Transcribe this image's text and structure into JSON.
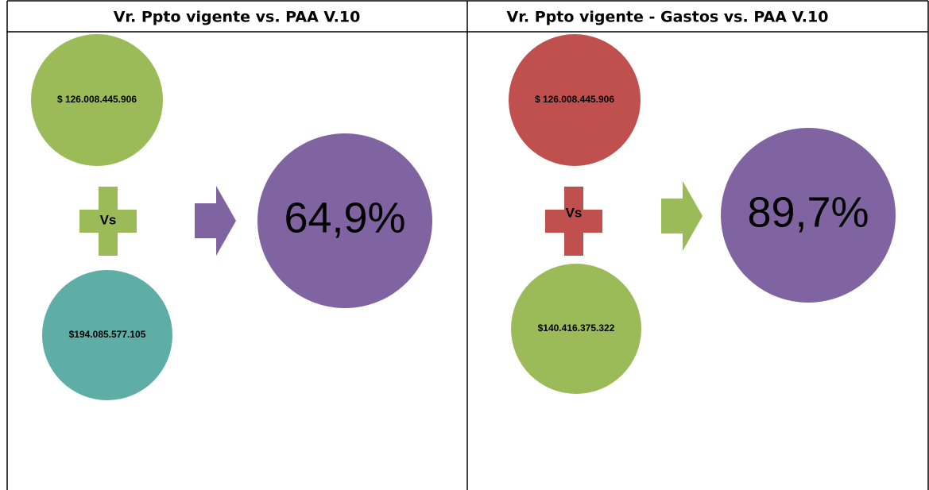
{
  "panels": [
    {
      "title": "Vr. Ppto vigente vs. PAA V.10",
      "top": "$  126.008.445.906",
      "operator": "Vs",
      "bottom": "$194.085.577.105",
      "result": "64,9%"
    },
    {
      "title": "Vr. Ppto vigente - Gastos  vs. PAA V.10",
      "top": "$  126.008.445.906",
      "operator": "Vs",
      "bottom": "$140.416.375.322",
      "result": "89,7%"
    }
  ]
}
